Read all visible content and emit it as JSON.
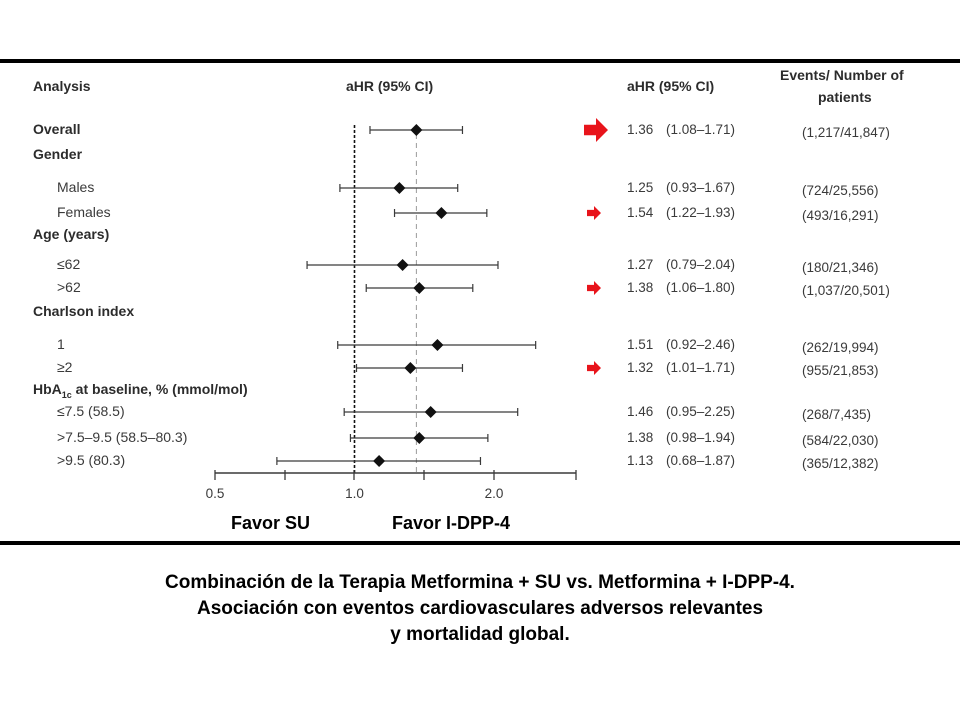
{
  "header": {
    "analysis": "Analysis",
    "ahr_ci_plot": "aHR (95% CI)",
    "ahr_ci_col": "aHR (95% CI)",
    "events_line1": "Events/ Number of",
    "events_line2": "patients"
  },
  "rows": [
    {
      "label": "Overall",
      "kind": "header",
      "ahr": "1.36",
      "ci": "(1.08–1.71)",
      "events": "(1,217/41,847)",
      "arrow": "large"
    },
    {
      "label": "Gender",
      "kind": "group"
    },
    {
      "label": "Males",
      "kind": "sub",
      "ahr": "1.25",
      "ci": "(0.93–1.67)",
      "events": "(724/25,556)"
    },
    {
      "label": "Females",
      "kind": "sub",
      "ahr": "1.54",
      "ci": "(1.22–1.93)",
      "events": "(493/16,291)",
      "arrow": "small"
    },
    {
      "label": "Age (years)",
      "kind": "group"
    },
    {
      "label": "≤62",
      "kind": "sub",
      "ahr": "1.27",
      "ci": "(0.79–2.04)",
      "events": "(180/21,346)"
    },
    {
      "label": ">62",
      "kind": "sub",
      "ahr": "1.38",
      "ci": "(1.06–1.80)",
      "events": "(1,037/20,501)",
      "arrow": "small"
    },
    {
      "label": "Charlson index",
      "kind": "group"
    },
    {
      "label": "1",
      "kind": "sub",
      "ahr": "1.51",
      "ci": "(0.92–2.46)",
      "events": "(262/19,994)"
    },
    {
      "label": "≥2",
      "kind": "sub",
      "ahr": "1.32",
      "ci": "(1.01–1.71)",
      "events": "(955/21,853)",
      "arrow": "small"
    },
    {
      "label_pre": "HbA",
      "label_sub": "1c",
      "label_post": " at baseline, % (mmol/mol)",
      "kind": "group"
    },
    {
      "label": "≤7.5 (58.5)",
      "kind": "sub",
      "ahr": "1.46",
      "ci": "(0.95–2.25)",
      "events": "(268/7,435)"
    },
    {
      "label": ">7.5–9.5 (58.5–80.3)",
      "kind": "sub",
      "ahr": "1.38",
      "ci": "(0.98–1.94)",
      "events": "(584/22,030)"
    },
    {
      "label": ">9.5 (80.3)",
      "kind": "sub",
      "ahr": "1.13",
      "ci": "(0.68–1.87)",
      "events": "(365/12,382)"
    }
  ],
  "favor": {
    "left": "Favor SU",
    "right": "Favor I-DPP-4"
  },
  "caption": {
    "line1": "Combinación de la Terapia  Metformina + SU  vs.   Metformina + I-DPP-4.",
    "line2": "Asociación con eventos cardiovasculares adversos relevantes",
    "line3": "y mortalidad global."
  },
  "colors": {
    "arrow": "#e8141b",
    "line": "#3a3a3a",
    "ref": "#9a9a9a"
  },
  "chart_data": {
    "type": "forest",
    "x_scale": "log",
    "xlim": [
      0.5,
      2.8
    ],
    "ticks": [
      "0.5",
      "1.0",
      "2.0"
    ],
    "reference_line": 1.0,
    "overall_line": 1.36,
    "series": [
      {
        "category": "Overall",
        "ahr": 1.36,
        "lo": 1.08,
        "hi": 1.71
      },
      {
        "category": "Males",
        "ahr": 1.25,
        "lo": 0.93,
        "hi": 1.67
      },
      {
        "category": "Females",
        "ahr": 1.54,
        "lo": 1.22,
        "hi": 1.93
      },
      {
        "category": "≤62",
        "ahr": 1.27,
        "lo": 0.79,
        "hi": 2.04
      },
      {
        "category": ">62",
        "ahr": 1.38,
        "lo": 1.06,
        "hi": 1.8
      },
      {
        "category": "1",
        "ahr": 1.51,
        "lo": 0.92,
        "hi": 2.46
      },
      {
        "category": "≥2",
        "ahr": 1.32,
        "lo": 1.01,
        "hi": 1.71
      },
      {
        "category": "≤7.5 (58.5)",
        "ahr": 1.46,
        "lo": 0.95,
        "hi": 2.25
      },
      {
        "category": ">7.5–9.5 (58.5–80.3)",
        "ahr": 1.38,
        "lo": 0.98,
        "hi": 1.94
      },
      {
        "category": ">9.5 (80.3)",
        "ahr": 1.13,
        "lo": 0.68,
        "hi": 1.87
      }
    ]
  }
}
